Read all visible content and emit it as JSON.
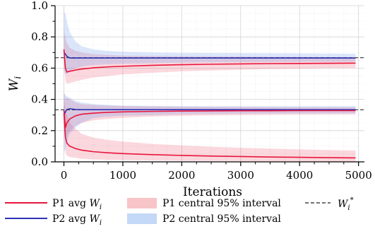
{
  "chart_data": {
    "type": "line",
    "xlabel": "Iterations",
    "ylabel": "W_i",
    "xlim": [
      -150,
      5100
    ],
    "ylim": [
      0.0,
      1.0
    ],
    "xticks": [
      0,
      1000,
      2000,
      3000,
      4000,
      5000
    ],
    "yticks": [
      0.0,
      0.2,
      0.4,
      0.6,
      0.8,
      1.0
    ],
    "xtick_labels": [
      "0",
      "1000",
      "2000",
      "3000",
      "4000",
      "5000"
    ],
    "ytick_labels": [
      "0.0",
      "0.2",
      "0.4",
      "0.6",
      "0.8",
      "1.0"
    ],
    "grid": true,
    "legend_position": "below",
    "reference_lines": [
      0.6667,
      0.3333
    ],
    "x": [
      0,
      25,
      50,
      100,
      200,
      300,
      500,
      750,
      1000,
      1500,
      2000,
      2500,
      3000,
      3500,
      4000,
      4500,
      4950
    ],
    "series": [
      {
        "name": "P1 avg W_i",
        "color": "#e8163c",
        "group": "P1",
        "values": [
          0.72,
          0.6,
          0.575,
          0.58,
          0.588,
          0.594,
          0.602,
          0.608,
          0.612,
          0.618,
          0.622,
          0.625,
          0.627,
          0.629,
          0.63,
          0.631,
          0.632
        ],
        "band_lower": [
          0.64,
          0.52,
          0.5,
          0.505,
          0.515,
          0.525,
          0.54,
          0.55,
          0.56,
          0.57,
          0.58,
          0.585,
          0.59,
          0.594,
          0.597,
          0.6,
          0.602
        ],
        "band_upper": [
          0.84,
          0.8,
          0.76,
          0.73,
          0.71,
          0.7,
          0.69,
          0.685,
          0.68,
          0.678,
          0.676,
          0.675,
          0.674,
          0.673,
          0.672,
          0.671,
          0.67
        ]
      },
      {
        "name": "P1 avg W_i",
        "color": "#e8163c",
        "group": "P1",
        "values": [
          0.33,
          0.22,
          0.25,
          0.275,
          0.295,
          0.305,
          0.312,
          0.317,
          0.32,
          0.323,
          0.325,
          0.326,
          0.327,
          0.327,
          0.328,
          0.328,
          0.328
        ],
        "band_lower": [
          0.24,
          0.14,
          0.17,
          0.2,
          0.23,
          0.25,
          0.265,
          0.275,
          0.282,
          0.29,
          0.295,
          0.298,
          0.3,
          0.302,
          0.303,
          0.304,
          0.305
        ],
        "band_upper": [
          0.45,
          0.4,
          0.41,
          0.4,
          0.38,
          0.37,
          0.365,
          0.36,
          0.358,
          0.355,
          0.353,
          0.352,
          0.351,
          0.35,
          0.35,
          0.35,
          0.35
        ]
      },
      {
        "name": "P1 avg W_i",
        "color": "#e8163c",
        "group": "P1",
        "values": [
          0.31,
          0.16,
          0.12,
          0.1,
          0.085,
          0.075,
          0.065,
          0.058,
          0.053,
          0.046,
          0.041,
          0.037,
          0.034,
          0.031,
          0.029,
          0.027,
          0.025
        ],
        "band_lower": [
          0.22,
          0.06,
          0.04,
          0.03,
          0.025,
          0.02,
          0.016,
          0.013,
          0.011,
          0.009,
          0.007,
          0.006,
          0.005,
          0.004,
          0.004,
          0.003,
          0.003
        ],
        "band_upper": [
          0.4,
          0.34,
          0.3,
          0.25,
          0.21,
          0.18,
          0.155,
          0.14,
          0.13,
          0.115,
          0.105,
          0.097,
          0.09,
          0.085,
          0.08,
          0.076,
          0.072
        ]
      },
      {
        "name": "P2 avg W_i",
        "color": "#2c33b4",
        "group": "P2",
        "values": [
          0.7,
          0.69,
          0.675,
          0.665,
          0.665,
          0.665,
          0.665,
          0.665,
          0.665,
          0.665,
          0.665,
          0.665,
          0.665,
          0.665,
          0.665,
          0.665,
          0.665
        ],
        "band_lower": [
          0.58,
          0.56,
          0.565,
          0.58,
          0.6,
          0.61,
          0.62,
          0.625,
          0.628,
          0.632,
          0.635,
          0.637,
          0.638,
          0.639,
          0.64,
          0.641,
          0.642
        ],
        "band_upper": [
          0.96,
          0.95,
          0.9,
          0.83,
          0.77,
          0.74,
          0.72,
          0.71,
          0.705,
          0.7,
          0.698,
          0.697,
          0.696,
          0.695,
          0.694,
          0.693,
          0.692
        ]
      },
      {
        "name": "P2 avg W_i",
        "color": "#2c33b4",
        "group": "P2",
        "values": [
          0.3,
          0.32,
          0.335,
          0.34,
          0.335,
          0.334,
          0.334,
          0.334,
          0.334,
          0.334,
          0.334,
          0.334,
          0.334,
          0.334,
          0.334,
          0.334,
          0.334
        ],
        "band_lower": [
          0.06,
          0.08,
          0.13,
          0.18,
          0.22,
          0.25,
          0.28,
          0.29,
          0.295,
          0.3,
          0.305,
          0.307,
          0.308,
          0.309,
          0.31,
          0.31,
          0.31
        ],
        "band_upper": [
          0.44,
          0.43,
          0.42,
          0.41,
          0.39,
          0.38,
          0.37,
          0.365,
          0.36,
          0.358,
          0.357,
          0.356,
          0.356,
          0.356,
          0.356,
          0.356,
          0.356
        ]
      }
    ],
    "legend": [
      {
        "label": "P1 avg W_i",
        "kind": "line",
        "color": "#e8163c"
      },
      {
        "label": "P2 avg W_i",
        "kind": "line",
        "color": "#2c33b4"
      },
      {
        "label": "P1 central 95% interval",
        "kind": "patch",
        "color": "#f7c4c8"
      },
      {
        "label": "P2 central 95% interval",
        "kind": "patch",
        "color": "#c4d8f7"
      },
      {
        "label": "W_i^*",
        "kind": "dashed",
        "color": "#444444"
      }
    ]
  }
}
